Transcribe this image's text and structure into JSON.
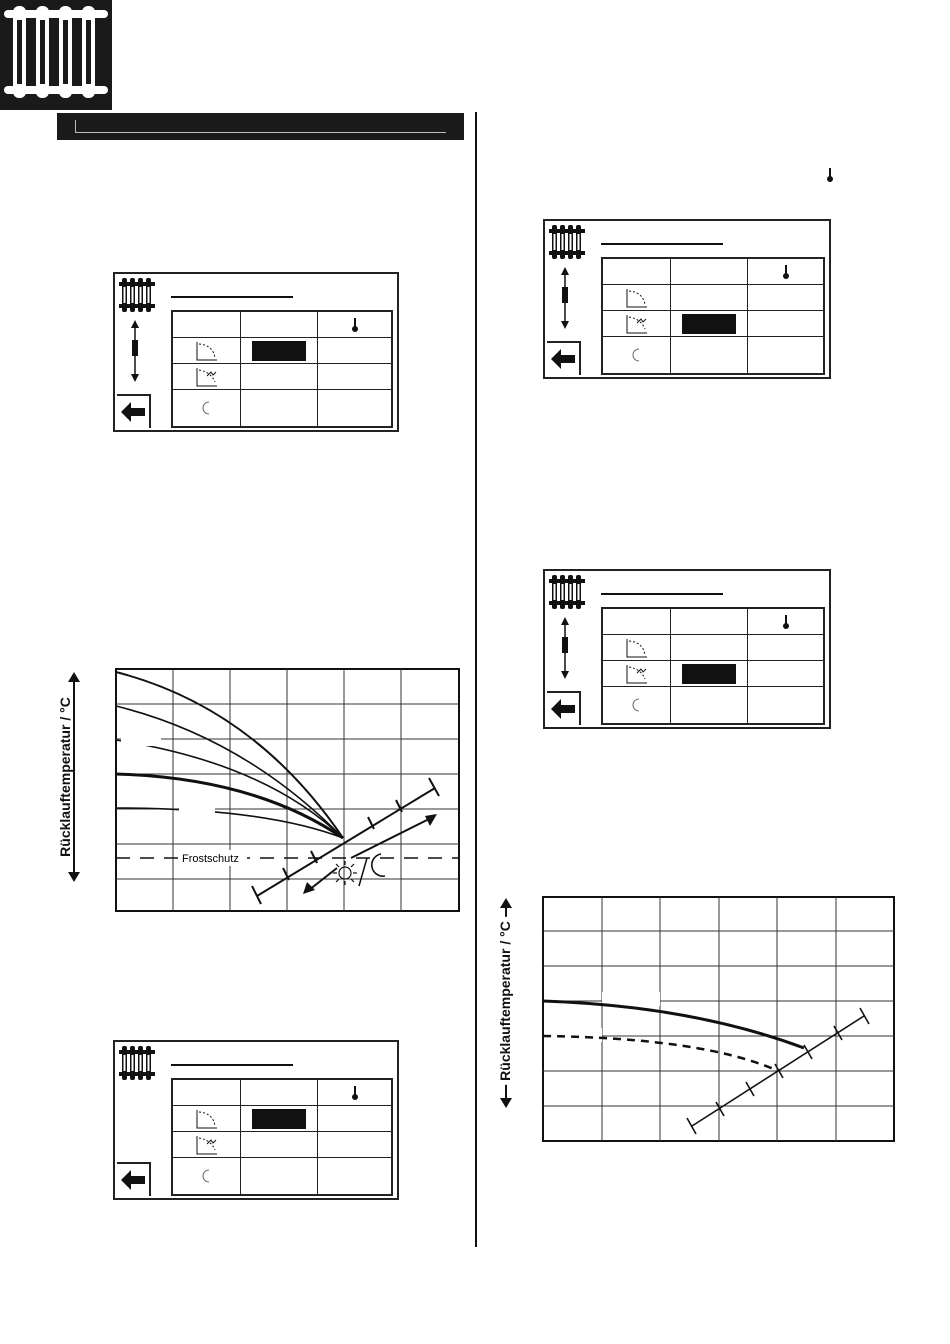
{
  "page": {
    "background": "#ffffff",
    "ink": "#111111"
  },
  "icons": {
    "radiator": "radiator-icon",
    "thermometer": "thermometer-icon",
    "heating-curve": "heating-curve-icon",
    "eco-curve": "eco-curve-icon",
    "moon": "moon-icon",
    "sun": "sun-icon",
    "back-arrow": "back-arrow-icon",
    "scroll-arrows": "scroll-arrows-icon"
  },
  "charts": {
    "chart1": {
      "ylabel": "Rücklauftemperatur / °C",
      "annotation": "Frostschutz"
    },
    "chart2": {
      "ylabel": "Rücklauftemperatur / °C"
    }
  },
  "chart_data": [
    {
      "type": "line",
      "ylabel": "Rücklauftemperatur / °C",
      "annotation": "Frostschutz",
      "series_count": 5,
      "grid": true
    },
    {
      "type": "line",
      "ylabel": "Rücklauftemperatur / °C",
      "series_count": 2,
      "grid": true
    }
  ]
}
